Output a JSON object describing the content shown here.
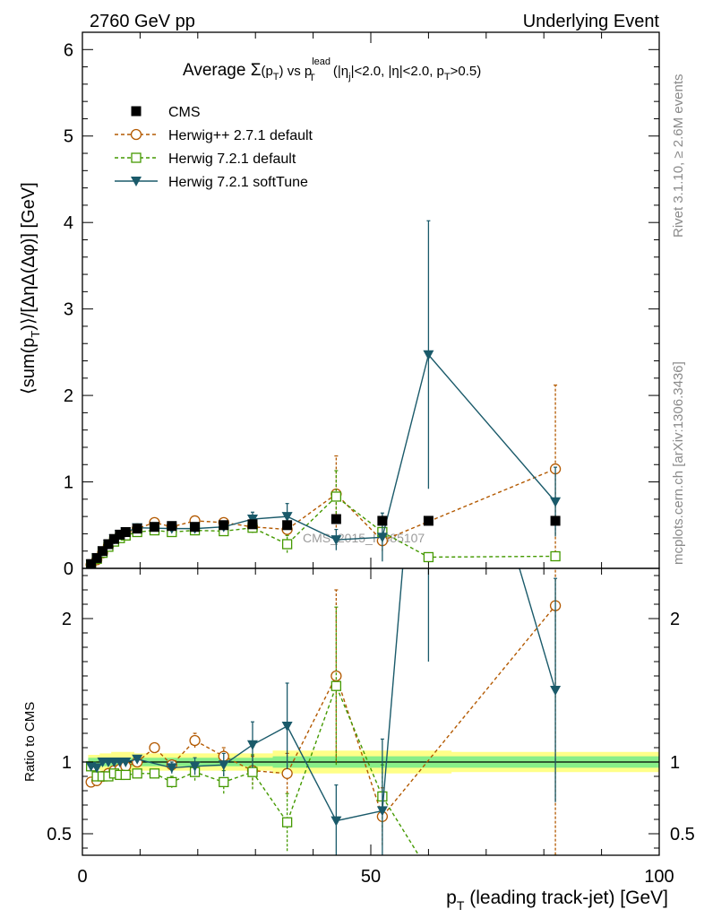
{
  "header": {
    "left": "2760 GeV pp",
    "right": "Underlying Event"
  },
  "side_labels": {
    "rivet": "Rivet 3.1.10, ≥ 2.6M events",
    "mcplots": "mcplots.cern.ch [arXiv:1306.3436]"
  },
  "watermark": "CMS_2015_I1385107",
  "chart_data": {
    "type": "line",
    "title": {
      "prefix": "Average ",
      "sigma": "Σ",
      "pt_open": "(p",
      "pt_sub": "T",
      "pt_close": ")",
      "vs": " vs p",
      "lead_sup": "lead",
      "lead_sub": "T",
      "eta_j_open": " (|η",
      "eta_j_sub": "j",
      "eta_cut": "|<2.0, |η|<2.0, p",
      "pt_cut_sub": "T",
      "pt_cut": ">0.5)"
    },
    "ylabel": {
      "part1": "⟨sum(p",
      "sub": "T",
      "part2": ")⟩/[ΔηΔ(Δφ)] [GeV]"
    },
    "xlabel": {
      "p": "p",
      "sub": "T",
      "rest": " (leading track-jet) [GeV]"
    },
    "ratio_ylabel": "Ratio to CMS",
    "xlim": [
      0,
      100
    ],
    "ylim": [
      0,
      6.2
    ],
    "ratio_ylim": [
      0.35,
      2.35
    ],
    "x_ticks": [
      {
        "v": 0,
        "label": "0"
      },
      {
        "v": 50,
        "label": "50"
      },
      {
        "v": 100,
        "label": "100"
      }
    ],
    "y_ticks": [
      {
        "v": 0,
        "label": "0"
      },
      {
        "v": 1,
        "label": "1"
      },
      {
        "v": 2,
        "label": "2"
      },
      {
        "v": 3,
        "label": "3"
      },
      {
        "v": 4,
        "label": "4"
      },
      {
        "v": 5,
        "label": "5"
      },
      {
        "v": 6,
        "label": "6"
      }
    ],
    "ratio_y_ticks": [
      {
        "v": 0.5,
        "label": "0.5"
      },
      {
        "v": 1,
        "label": "1"
      },
      {
        "v": 2,
        "label": "2"
      }
    ],
    "legend_position": "top-left",
    "series": [
      {
        "name": "CMS",
        "key": "cms",
        "color": "#000000",
        "marker": "filled-square",
        "x": [
          1.5,
          2.5,
          3.5,
          4.5,
          5.5,
          6.5,
          7.5,
          9.5,
          12.5,
          15.5,
          19.5,
          24.5,
          29.5,
          35.5,
          44,
          52,
          60,
          82
        ],
        "y": [
          0.05,
          0.12,
          0.2,
          0.28,
          0.34,
          0.39,
          0.42,
          0.46,
          0.48,
          0.49,
          0.48,
          0.5,
          0.51,
          0.5,
          0.57,
          0.55,
          0.55,
          0.55
        ],
        "err": [
          0.01,
          0.01,
          0.01,
          0.01,
          0.01,
          0.01,
          0.01,
          0.01,
          0.01,
          0.01,
          0.01,
          0.01,
          0.02,
          0.02,
          0.03,
          0.03,
          0.03,
          0.04
        ]
      },
      {
        "name": "Herwig++ 2.7.1 default",
        "key": "hpp",
        "color": "#b35900",
        "marker": "open-circle",
        "dashed": true,
        "x": [
          1.5,
          2.5,
          3.5,
          4.5,
          5.5,
          6.5,
          7.5,
          9.5,
          12.5,
          15.5,
          19.5,
          24.5,
          29.5,
          35.5,
          44,
          52,
          82
        ],
        "y": [
          0.04,
          0.1,
          0.18,
          0.26,
          0.32,
          0.37,
          0.41,
          0.46,
          0.53,
          0.48,
          0.55,
          0.53,
          0.48,
          0.45,
          0.86,
          0.32,
          1.15
        ],
        "err": [
          0.005,
          0.005,
          0.005,
          0.005,
          0.01,
          0.01,
          0.01,
          0.01,
          0.02,
          0.02,
          0.03,
          0.03,
          0.05,
          0.07,
          0.44,
          0.12,
          0.97
        ],
        "ratio": [
          0.86,
          0.87,
          0.9,
          0.92,
          0.94,
          0.95,
          0.97,
          1.0,
          1.1,
          0.98,
          1.15,
          1.04,
          0.94,
          0.92,
          1.6,
          0.62,
          2.09
        ],
        "ratio_err": [
          0.01,
          0.01,
          0.01,
          0.01,
          0.02,
          0.02,
          0.02,
          0.02,
          0.03,
          0.03,
          0.05,
          0.06,
          0.1,
          0.14,
          0.6,
          0.2,
          1.8
        ]
      },
      {
        "name": "Herwig 7.2.1 default",
        "key": "h7def",
        "color": "#449900",
        "marker": "open-square",
        "dashed": true,
        "x": [
          1.5,
          2.5,
          3.5,
          4.5,
          5.5,
          6.5,
          7.5,
          9.5,
          12.5,
          15.5,
          19.5,
          24.5,
          29.5,
          35.5,
          44,
          52,
          60,
          82
        ],
        "y": [
          0.045,
          0.11,
          0.18,
          0.25,
          0.31,
          0.35,
          0.38,
          0.42,
          0.44,
          0.42,
          0.44,
          0.43,
          0.47,
          0.28,
          0.83,
          0.42,
          0.13,
          0.14
        ],
        "err": [
          0.005,
          0.005,
          0.005,
          0.005,
          0.01,
          0.01,
          0.01,
          0.01,
          0.02,
          0.02,
          0.03,
          0.04,
          0.06,
          0.1,
          0.3,
          0.12,
          0.05,
          0.05
        ],
        "ratio": [
          0.97,
          0.9,
          0.9,
          0.9,
          0.92,
          0.91,
          0.91,
          0.92,
          0.92,
          0.86,
          0.93,
          0.86,
          0.93,
          0.58,
          1.53,
          0.76,
          0.24,
          0.25
        ],
        "ratio_err": [
          0.01,
          0.01,
          0.01,
          0.01,
          0.02,
          0.02,
          0.02,
          0.02,
          0.03,
          0.04,
          0.06,
          0.08,
          0.12,
          0.2,
          0.55,
          0.22,
          0.1,
          0.1
        ]
      },
      {
        "name": "Herwig 7.2.1 softTune",
        "key": "h7soft",
        "color": "#1a5a6a",
        "marker": "filled-triangle-down",
        "dashed": false,
        "x": [
          1.5,
          2.5,
          3.5,
          4.5,
          5.5,
          6.5,
          7.5,
          9.5,
          15.5,
          19.5,
          24.5,
          29.5,
          35.5,
          44,
          52,
          60,
          82
        ],
        "y": [
          0.05,
          0.12,
          0.2,
          0.28,
          0.34,
          0.39,
          0.42,
          0.47,
          0.46,
          0.46,
          0.48,
          0.57,
          0.6,
          0.33,
          0.36,
          2.47,
          0.77
        ],
        "err": [
          0.005,
          0.005,
          0.005,
          0.005,
          0.01,
          0.01,
          0.01,
          0.01,
          0.02,
          0.03,
          0.04,
          0.08,
          0.15,
          0.12,
          0.28,
          1.55,
          0.4
        ],
        "ratio": [
          0.97,
          0.96,
          1.0,
          1.0,
          1.0,
          1.0,
          1.0,
          1.02,
          0.96,
          0.97,
          0.98,
          1.12,
          1.25,
          0.59,
          0.66,
          4.5,
          1.5
        ],
        "ratio_err": [
          0.01,
          0.01,
          0.01,
          0.01,
          0.02,
          0.02,
          0.02,
          0.02,
          0.04,
          0.06,
          0.08,
          0.16,
          0.3,
          0.25,
          0.5,
          2.8,
          0.78
        ]
      }
    ],
    "cms_band": {
      "x": [
        1,
        3,
        5,
        7,
        9,
        11,
        14,
        17,
        22,
        27,
        33,
        39,
        48,
        56,
        64,
        100
      ],
      "stat_sys_total": [
        0.05,
        0.06,
        0.07,
        0.07,
        0.06,
        0.06,
        0.06,
        0.06,
        0.06,
        0.06,
        0.08,
        0.08,
        0.08,
        0.08,
        0.07,
        0.07
      ],
      "stat": [
        0.03,
        0.03,
        0.03,
        0.03,
        0.03,
        0.03,
        0.03,
        0.03,
        0.03,
        0.03,
        0.04,
        0.04,
        0.04,
        0.04,
        0.04,
        0.04
      ]
    }
  }
}
